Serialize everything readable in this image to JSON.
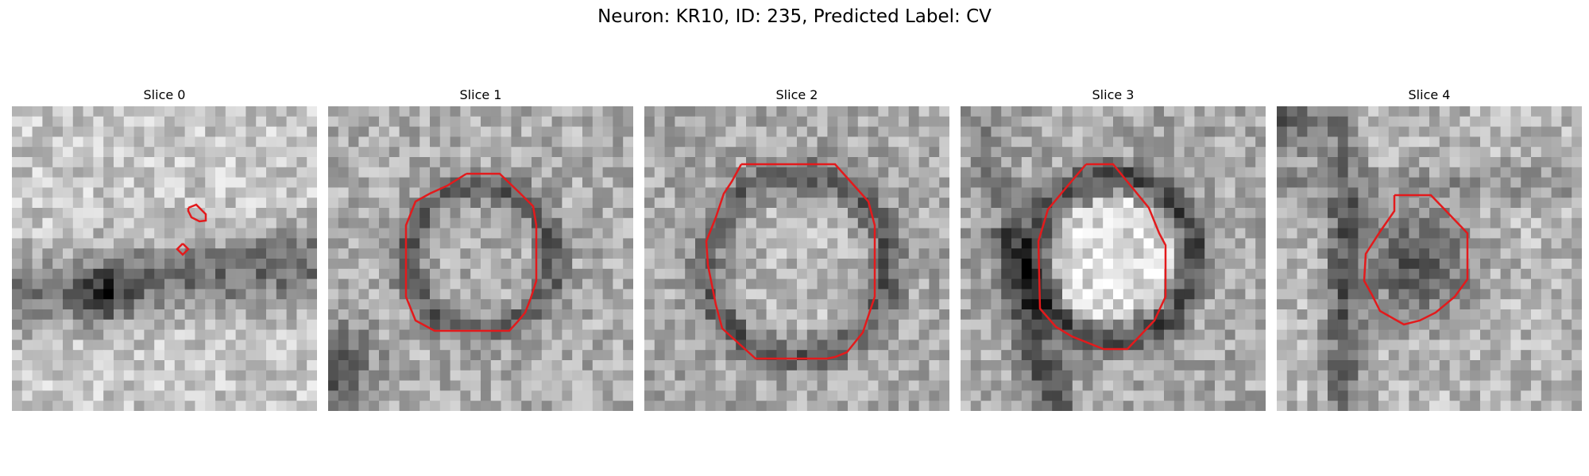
{
  "figure": {
    "title": "Neuron: KR10, ID: 235, Predicted Label: CV"
  },
  "colors": {
    "contour": "#e31a1c",
    "colormap": "grayscale"
  },
  "panels": [
    {
      "title": "Slice 0",
      "seed": 11,
      "content": "dark band crossing lower-left; two small contour fragments near center-right"
    },
    {
      "title": "Slice 1",
      "seed": 23,
      "content": "dark-rimmed round vesicle with octagonal red contour"
    },
    {
      "title": "Slice 2",
      "seed": 37,
      "content": "large dark-rimmed round vesicle with octagonal red contour"
    },
    {
      "title": "Slice 3",
      "seed": 41,
      "content": "bright round vesicle with dark rim and octagonal red contour"
    },
    {
      "title": "Slice 4",
      "seed": 59,
      "content": "smaller dark vesicle between dark strands with red contour"
    }
  ]
}
